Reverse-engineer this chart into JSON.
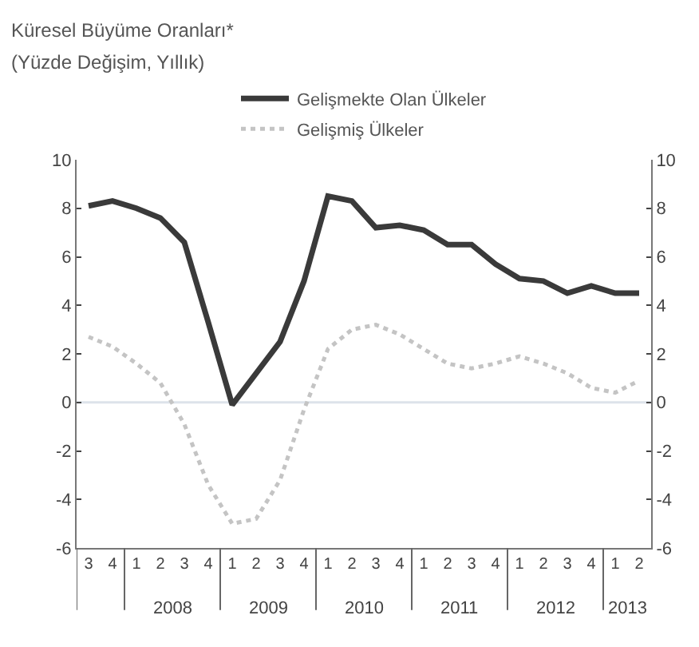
{
  "chart_data": {
    "type": "line",
    "title": "Küresel Büyüme Oranları*",
    "subtitle": "(Yüzde Değişim, Yıllık)",
    "categories": [
      "3",
      "4",
      "1",
      "2",
      "3",
      "4",
      "1",
      "2",
      "3",
      "4",
      "1",
      "2",
      "3",
      "4",
      "1",
      "2",
      "3",
      "4",
      "1",
      "2",
      "3",
      "4",
      "1",
      "2"
    ],
    "series": [
      {
        "name": "Gelişmekte Olan Ülkeler",
        "color": "#3a3a3a",
        "line_style": "solid",
        "values": [
          8.1,
          8.3,
          8.0,
          7.6,
          6.6,
          3.3,
          -0.1,
          1.2,
          2.5,
          5.0,
          8.5,
          8.3,
          7.2,
          7.3,
          7.1,
          6.5,
          6.5,
          5.7,
          5.1,
          5.0,
          4.5,
          4.8,
          4.5,
          4.5
        ]
      },
      {
        "name": "Gelişmiş Ülkeler",
        "color": "#c4c4c4",
        "line_style": "dotted",
        "values": [
          2.7,
          2.3,
          1.6,
          0.8,
          -0.9,
          -3.4,
          -5.0,
          -4.8,
          -3.2,
          -0.3,
          2.2,
          3.0,
          3.2,
          2.8,
          2.2,
          1.6,
          1.4,
          1.6,
          1.9,
          1.6,
          1.2,
          0.6,
          0.4,
          0.9
        ]
      }
    ],
    "ylim": [
      -6,
      10
    ],
    "yticks": [
      -6,
      -4,
      -2,
      0,
      2,
      4,
      6,
      8,
      10
    ],
    "y2lim": [
      -6,
      10
    ],
    "y2ticks": [
      -6,
      -4,
      -2,
      0,
      2,
      4,
      6,
      8,
      10
    ],
    "ref_lines": [
      {
        "axis": "y",
        "value": 0,
        "color": "#dde3ea",
        "line_style": "solid"
      }
    ],
    "annotations": [
      "2008",
      "2009",
      "2010",
      "2011",
      "2012",
      "2013"
    ],
    "grid": false,
    "legend": "top",
    "marker": "none"
  }
}
